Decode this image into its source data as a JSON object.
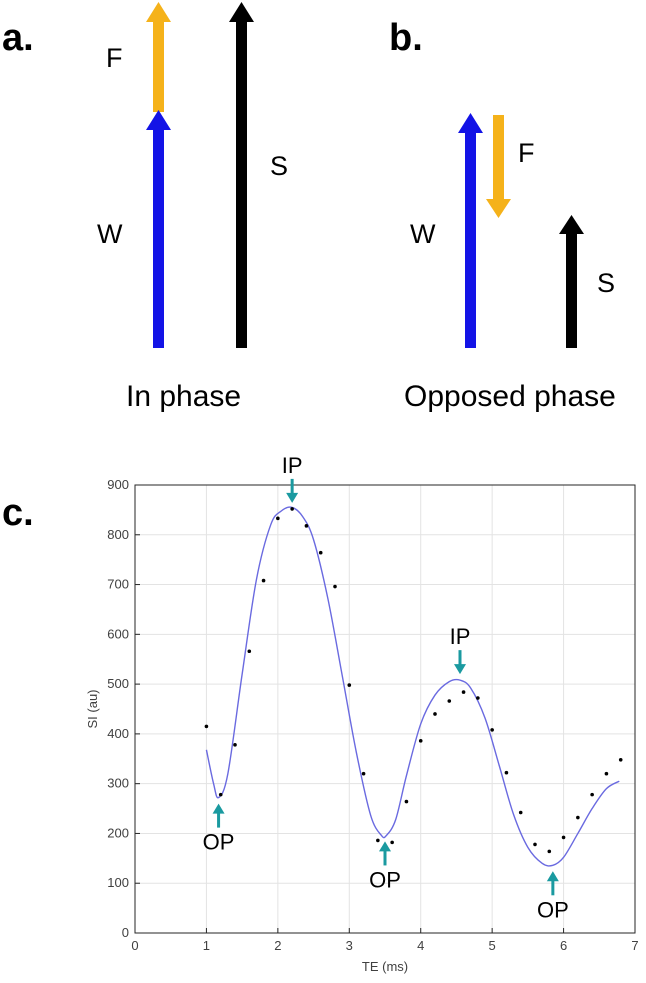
{
  "panel_a": {
    "label": "a.",
    "caption": "In phase",
    "vectors": [
      {
        "name": "F",
        "color": "#f5b21a",
        "magnitude": 0.45,
        "direction": "up",
        "base": "top-of-W"
      },
      {
        "name": "W",
        "color": "#1313e6",
        "magnitude": 1.0,
        "direction": "up",
        "base": "ground"
      },
      {
        "name": "S",
        "color": "#000000",
        "magnitude": 1.45,
        "direction": "up",
        "base": "ground"
      }
    ]
  },
  "panel_b": {
    "label": "b.",
    "caption": "Opposed phase",
    "vectors": [
      {
        "name": "W",
        "color": "#1313e6",
        "magnitude": 1.0,
        "direction": "up",
        "base": "ground"
      },
      {
        "name": "F",
        "color": "#f5b21a",
        "magnitude": 0.45,
        "direction": "down",
        "base": "top-of-W"
      },
      {
        "name": "S",
        "color": "#000000",
        "magnitude": 0.55,
        "direction": "up",
        "base": "ground"
      }
    ]
  },
  "panel_c": {
    "label": "c.",
    "annotation_color": "#1a9aa0",
    "line_color": "#6a6ae0",
    "grid": true
  },
  "chart_data": {
    "type": "scatter",
    "xlabel": "TE (ms)",
    "ylabel": "SI (au)",
    "xlim": [
      0,
      7
    ],
    "ylim": [
      0,
      900
    ],
    "xticks": [
      0,
      1,
      2,
      3,
      4,
      5,
      6,
      7
    ],
    "yticks": [
      0,
      100,
      200,
      300,
      400,
      500,
      600,
      700,
      800,
      900
    ],
    "series": [
      {
        "kind": "points",
        "x": [
          1.0,
          1.2,
          1.4,
          1.6,
          1.8,
          2.0,
          2.2,
          2.4,
          2.6,
          2.8,
          3.0,
          3.2,
          3.4,
          3.6,
          3.8,
          4.0,
          4.2,
          4.4,
          4.6,
          4.8,
          5.0,
          5.2,
          5.4,
          5.6,
          5.8,
          6.0,
          6.2,
          6.4,
          6.6,
          6.8
        ],
        "y": [
          415,
          278,
          378,
          566,
          708,
          833,
          852,
          818,
          764,
          696,
          498,
          320,
          186,
          182,
          264,
          386,
          440,
          466,
          484,
          472,
          408,
          322,
          242,
          178,
          164,
          192,
          232,
          278,
          320,
          348
        ]
      },
      {
        "kind": "fit",
        "x": [
          1.0,
          1.1,
          1.17,
          1.3,
          1.5,
          1.7,
          1.9,
          2.05,
          2.2,
          2.35,
          2.5,
          2.7,
          2.9,
          3.1,
          3.3,
          3.45,
          3.52,
          3.65,
          3.8,
          4.0,
          4.2,
          4.4,
          4.55,
          4.7,
          4.9,
          5.1,
          5.3,
          5.5,
          5.7,
          5.85,
          6.0,
          6.2,
          6.4,
          6.6,
          6.78
        ],
        "y": [
          368,
          300,
          272,
          320,
          520,
          710,
          820,
          848,
          855,
          836,
          790,
          672,
          518,
          362,
          236,
          196,
          196,
          228,
          316,
          420,
          478,
          505,
          508,
          492,
          432,
          336,
          238,
          172,
          140,
          136,
          152,
          200,
          250,
          290,
          305
        ]
      }
    ],
    "annotations": [
      {
        "text": "IP",
        "x": 2.2,
        "y": 852,
        "arrow": "down"
      },
      {
        "text": "IP",
        "x": 4.55,
        "y": 508,
        "arrow": "down"
      },
      {
        "text": "OP",
        "x": 1.17,
        "y": 272,
        "arrow": "up"
      },
      {
        "text": "OP",
        "x": 3.5,
        "y": 196,
        "arrow": "up"
      },
      {
        "text": "OP",
        "x": 5.85,
        "y": 136,
        "arrow": "up"
      }
    ]
  }
}
